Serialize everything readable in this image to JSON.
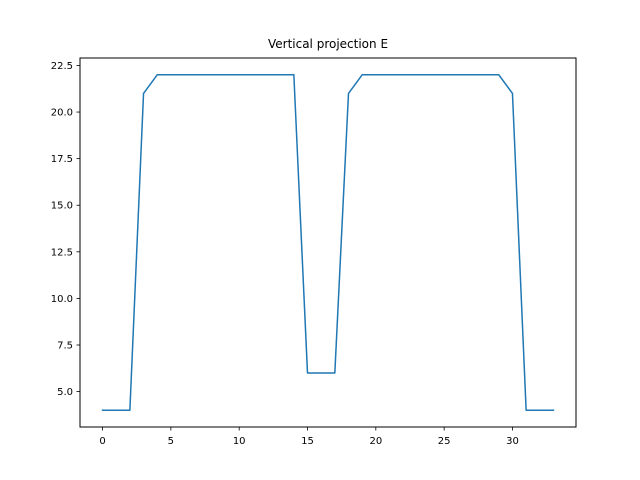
{
  "chart_data": {
    "type": "line",
    "title": "Vertical projection E",
    "xlabel": "",
    "ylabel": "",
    "xlim": [
      -1.65,
      34.65
    ],
    "ylim": [
      3.1,
      22.9
    ],
    "xticks": [
      0,
      5,
      10,
      15,
      20,
      25,
      30
    ],
    "yticks": [
      5.0,
      7.5,
      10.0,
      12.5,
      15.0,
      17.5,
      20.0,
      22.5
    ],
    "xtick_labels": [
      "0",
      "5",
      "10",
      "15",
      "20",
      "25",
      "30"
    ],
    "ytick_labels": [
      "5.0",
      "7.5",
      "10.0",
      "12.5",
      "15.0",
      "17.5",
      "20.0",
      "22.5"
    ],
    "grid": false,
    "series": [
      {
        "color": "#1f77b4",
        "x": [
          0,
          1,
          2,
          3,
          4,
          5,
          6,
          7,
          8,
          9,
          10,
          11,
          12,
          13,
          14,
          15,
          16,
          17,
          18,
          19,
          20,
          21,
          22,
          23,
          24,
          25,
          26,
          27,
          28,
          29,
          30,
          31,
          32,
          33
        ],
        "y": [
          4,
          4,
          4,
          21,
          22,
          22,
          22,
          22,
          22,
          22,
          22,
          22,
          22,
          22,
          22,
          6,
          6,
          6,
          21,
          22,
          22,
          22,
          22,
          22,
          22,
          22,
          22,
          22,
          22,
          22,
          21,
          4,
          4,
          4
        ]
      }
    ]
  }
}
